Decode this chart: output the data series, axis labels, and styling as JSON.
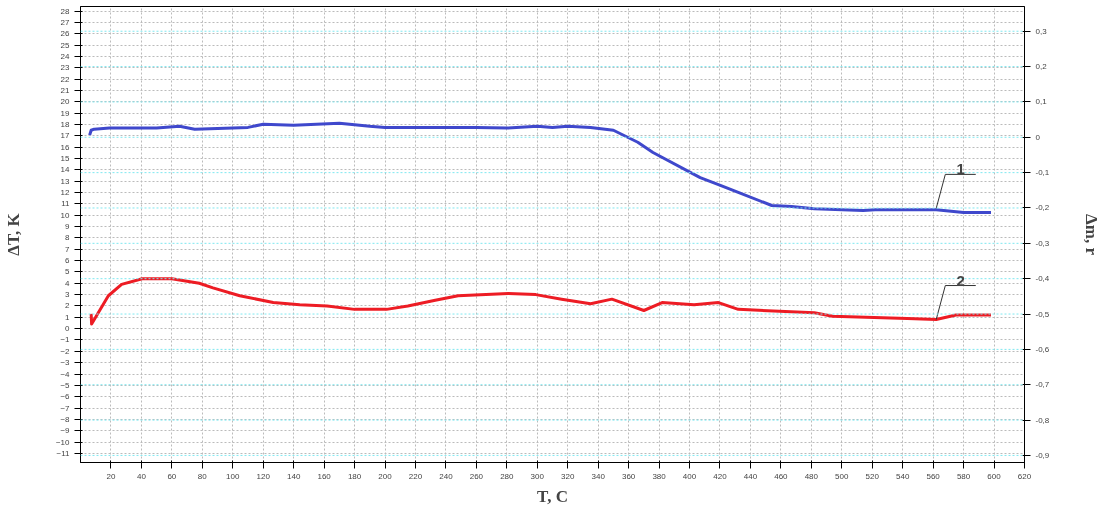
{
  "chart_data": {
    "type": "line",
    "xlabel": "T, C",
    "ylabel": "ΔT, K",
    "y2label": "Δm, r",
    "xlim": [
      0,
      620
    ],
    "xticks": [
      20,
      40,
      60,
      80,
      100,
      120,
      140,
      160,
      180,
      200,
      220,
      240,
      260,
      280,
      300,
      320,
      340,
      360,
      380,
      400,
      420,
      440,
      460,
      480,
      500,
      520,
      540,
      560,
      580,
      600,
      620
    ],
    "ylim": [
      -11.8,
      28.4
    ],
    "yticks": [
      -11,
      -10,
      -9,
      -8,
      -7,
      -6,
      -5,
      -4,
      -3,
      -2,
      -1,
      0,
      1,
      2,
      3,
      4,
      5,
      6,
      7,
      8,
      9,
      10,
      11,
      12,
      13,
      14,
      15,
      16,
      17,
      18,
      19,
      20,
      21,
      22,
      23,
      24,
      25,
      26,
      27,
      28
    ],
    "y2lim": [
      -0.92,
      0.37
    ],
    "y2ticks": [
      {
        "value": -0.9,
        "label": "-0,9"
      },
      {
        "value": -0.8,
        "label": "-0,8"
      },
      {
        "value": -0.7,
        "label": "-0,7"
      },
      {
        "value": -0.6,
        "label": "-0,6"
      },
      {
        "value": -0.5,
        "label": "-0,5"
      },
      {
        "value": -0.4,
        "label": "-0,4"
      },
      {
        "value": -0.3,
        "label": "-0,3"
      },
      {
        "value": -0.2,
        "label": "-0,2"
      },
      {
        "value": -0.1,
        "label": "-0,1"
      },
      0,
      {
        "value": 0.1,
        "label": "0,1"
      },
      {
        "value": 0.2,
        "label": "0,2"
      },
      {
        "value": 0.3,
        "label": "0,3"
      }
    ],
    "grid": true,
    "line_style": "solid",
    "marker": "none",
    "series": [
      {
        "color": "#3f48cc",
        "axis": "y2",
        "x": [
          6,
          7,
          9,
          19,
          50,
          65,
          75,
          110,
          120,
          140,
          170,
          190,
          200,
          260,
          280,
          300,
          310,
          320,
          335,
          350,
          366,
          376,
          407,
          419,
          432,
          454,
          467,
          482,
          514,
          522,
          562,
          580,
          598
        ],
        "values": [
          0.006,
          0.02,
          0.023,
          0.026,
          0.026,
          0.031,
          0.023,
          0.028,
          0.037,
          0.034,
          0.04,
          0.031,
          0.028,
          0.028,
          0.026,
          0.031,
          0.028,
          0.031,
          0.028,
          0.02,
          -0.014,
          -0.043,
          -0.114,
          -0.134,
          -0.156,
          -0.193,
          -0.196,
          -0.202,
          -0.207,
          -0.205,
          -0.205,
          -0.213,
          -0.213
        ]
      },
      {
        "color": "#ed1c24",
        "x": [
          7,
          7.3,
          18.3,
          27,
          40.5,
          60,
          78,
          87,
          104.6,
          126.6,
          144,
          162,
          180,
          201,
          215,
          233,
          248,
          281,
          299,
          316,
          335,
          349,
          370,
          382,
          403,
          419,
          432,
          482,
          494,
          543,
          562,
          575,
          598
        ],
        "values": [
          1.3,
          0.4,
          2.9,
          3.9,
          4.4,
          4.4,
          4.0,
          3.6,
          2.9,
          2.3,
          2.1,
          2.0,
          1.7,
          1.7,
          2.0,
          2.5,
          2.9,
          3.1,
          3.0,
          2.6,
          2.2,
          2.6,
          1.6,
          2.3,
          2.1,
          2.3,
          1.7,
          1.4,
          1.1,
          0.9,
          0.8,
          1.2,
          1.2
        ]
      }
    ],
    "annotations": [
      {
        "text": "1",
        "x": 562,
        "y": 10.6
      },
      {
        "text": "2",
        "x": 562,
        "y": 0.8
      }
    ]
  }
}
